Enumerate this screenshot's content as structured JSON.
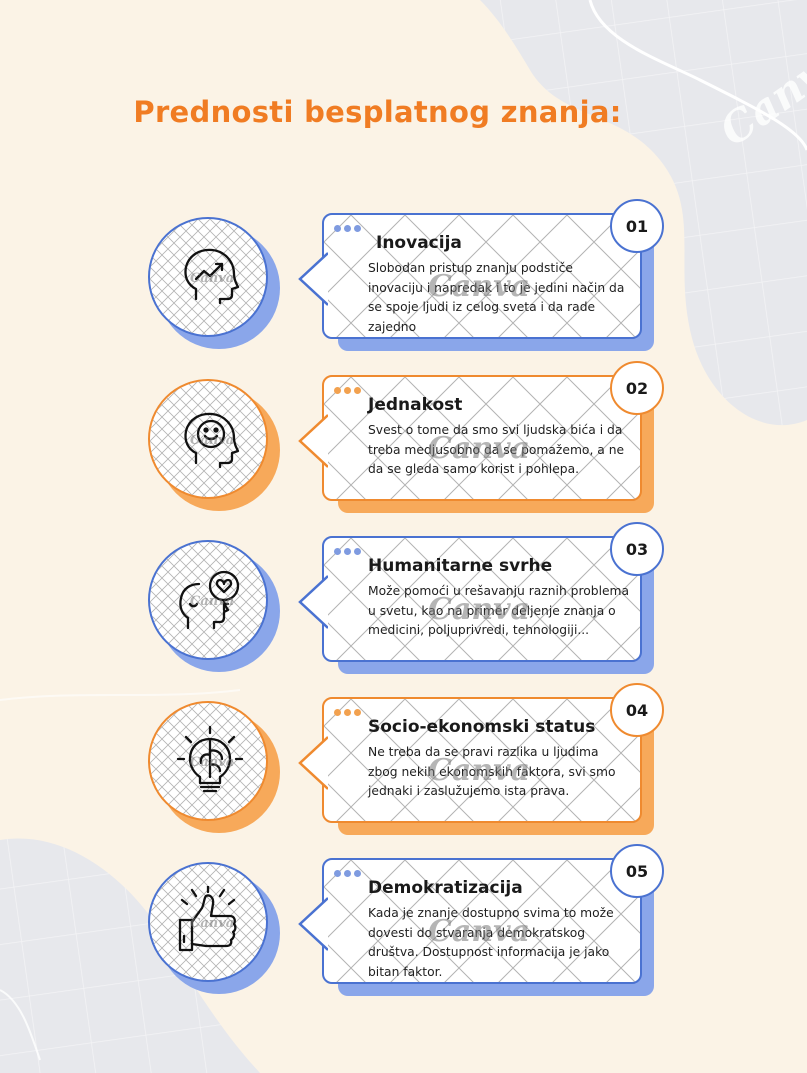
{
  "colors": {
    "background": "#fbf3e6",
    "title": "#f07c23",
    "blue": "#4a72d1",
    "blue_shadow": "#8aa6ea",
    "orange": "#ef8a2f",
    "orange_shadow": "#f7a95a",
    "light_gray_shape": "#e7e8ec"
  },
  "page": {
    "title": "Prednosti besplatnog znanja:",
    "watermark": "Canva"
  },
  "cards": [
    {
      "number": "01",
      "title": "Inovacija",
      "text": "Slobodan pristup znanju podstiče inovaciju i napredak i to je jedini način da se spoje ljudi iz celog sveta i da rade zajedno",
      "accent": "blue",
      "icon": "head-growth-icon"
    },
    {
      "number": "02",
      "title": "Jednakost",
      "text": "Svest o tome da smo svi ljudska bića i da treba medjusobno da se pomažemo, a ne da se gleda samo korist i pohlepa.",
      "accent": "orange",
      "icon": "head-smile-icon"
    },
    {
      "number": "03",
      "title": "Humanitarne svrhe",
      "text": "Može pomoći u rešavanju raznih problema u svetu, kao na primer deljenje znanja o medicini, poljuprivredi, tehnologiji...",
      "accent": "blue",
      "icon": "head-heart-key-icon"
    },
    {
      "number": "04",
      "title": "Socio-ekonomski status",
      "text": "Ne treba da se pravi razlika u ljudima zbog nekih ekonomskih faktora, svi smo jednaki i zaslužujemo ista prava.",
      "accent": "orange",
      "icon": "lightbulb-brain-icon"
    },
    {
      "number": "05",
      "title": "Demokratizacija",
      "text": "Kada je znanje dostupno svima to može dovesti do stvaranja demokratskog društva. Dostupnost informacija je jako bitan faktor.",
      "accent": "blue",
      "icon": "thumbs-up-icon"
    }
  ]
}
